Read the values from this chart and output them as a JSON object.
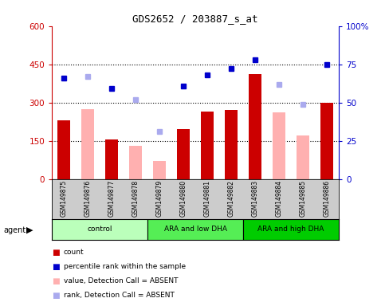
{
  "title": "GDS2652 / 203887_s_at",
  "samples": [
    "GSM149875",
    "GSM149876",
    "GSM149877",
    "GSM149878",
    "GSM149879",
    "GSM149880",
    "GSM149881",
    "GSM149882",
    "GSM149883",
    "GSM149884",
    "GSM149885",
    "GSM149886"
  ],
  "groups": [
    {
      "label": "control",
      "start": 0,
      "end": 3,
      "color": "#AAFFAA"
    },
    {
      "label": "ARA and low DHA",
      "start": 4,
      "end": 7,
      "color": "#55EE55"
    },
    {
      "label": "ARA and high DHA",
      "start": 8,
      "end": 11,
      "color": "#00DD00"
    }
  ],
  "count_values": [
    230,
    null,
    155,
    null,
    null,
    195,
    265,
    270,
    410,
    null,
    null,
    300
  ],
  "absent_value_bars": [
    null,
    275,
    null,
    130,
    70,
    null,
    null,
    null,
    null,
    260,
    170,
    null
  ],
  "percentile_present": [
    66,
    null,
    59,
    null,
    null,
    61,
    68,
    72,
    78,
    null,
    null,
    75
  ],
  "percentile_absent": [
    null,
    67,
    null,
    52,
    31,
    null,
    null,
    null,
    null,
    62,
    49,
    null
  ],
  "left_ylim": [
    0,
    600
  ],
  "right_ylim": [
    0,
    100
  ],
  "left_yticks": [
    0,
    150,
    300,
    450,
    600
  ],
  "right_yticks": [
    0,
    25,
    50,
    75,
    100
  ],
  "left_yticklabels": [
    "0",
    "150",
    "300",
    "450",
    "600"
  ],
  "right_yticklabels": [
    "0",
    "25",
    "50",
    "75",
    "100%"
  ],
  "hlines": [
    150,
    300,
    450
  ],
  "dark_red": "#CC0000",
  "light_pink": "#FFB0B0",
  "dark_blue": "#0000CC",
  "light_blue": "#AAAAEE",
  "left_tick_color": "#CC0000",
  "right_tick_color": "#0000CC",
  "sample_box_bg": "#CCCCCC",
  "legend_items": [
    {
      "color": "#CC0000",
      "label": "count"
    },
    {
      "color": "#0000CC",
      "label": "percentile rank within the sample"
    },
    {
      "color": "#FFB0B0",
      "label": "value, Detection Call = ABSENT"
    },
    {
      "color": "#AAAAEE",
      "label": "rank, Detection Call = ABSENT"
    }
  ]
}
